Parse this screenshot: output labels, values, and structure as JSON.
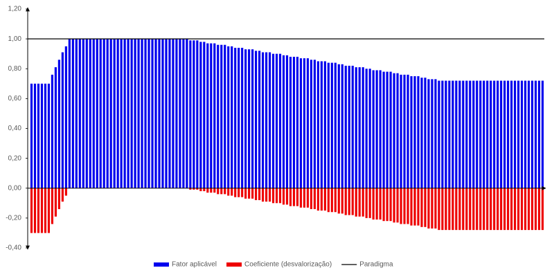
{
  "chart_data": {
    "type": "bar",
    "categories": [
      null,
      null,
      null,
      null,
      null,
      null,
      null,
      null,
      null,
      null,
      null,
      null,
      null,
      null,
      null,
      null,
      null,
      null,
      null,
      null,
      null,
      null,
      null,
      null,
      null,
      null,
      null,
      null,
      null,
      null,
      null,
      null,
      null,
      null,
      null,
      null,
      null,
      null,
      null,
      null,
      null,
      null,
      null,
      null,
      null,
      null,
      null,
      null,
      null,
      null,
      null,
      null,
      null,
      null,
      null,
      null,
      null,
      null,
      null,
      null,
      null,
      null,
      null,
      null,
      null,
      null,
      null,
      null,
      null,
      null,
      null,
      null,
      null,
      null,
      null,
      null,
      null,
      null,
      null,
      null,
      null,
      null,
      null,
      null,
      null,
      null,
      null,
      null,
      null,
      null,
      null,
      null,
      null,
      null,
      null,
      null,
      null,
      null,
      null,
      null,
      null,
      null,
      null,
      null,
      null,
      null,
      null,
      null,
      null,
      null,
      null,
      null,
      null,
      null,
      null,
      null,
      null,
      null,
      null,
      null,
      null,
      null,
      null,
      null,
      null,
      null,
      null,
      null,
      null,
      null,
      null,
      null,
      null,
      null,
      null,
      null,
      null,
      null,
      null,
      null,
      null,
      null,
      null,
      null,
      null,
      null,
      null,
      null,
      null
    ],
    "series": [
      {
        "name": "Fator aplicável",
        "color": "#0000ee",
        "values": [
          0.7,
          0.7,
          0.7,
          0.7,
          0.7,
          0.7,
          0.76,
          0.81,
          0.86,
          0.91,
          0.95,
          1,
          1,
          1,
          1,
          1,
          1,
          1,
          1,
          1,
          1,
          1,
          1,
          1,
          1,
          1,
          1,
          1,
          1,
          1,
          1,
          1,
          1,
          1,
          1,
          1,
          1,
          1,
          1,
          1,
          1,
          1,
          1,
          1,
          1,
          1,
          0.99,
          0.99,
          0.99,
          0.98,
          0.98,
          0.97,
          0.97,
          0.97,
          0.96,
          0.96,
          0.96,
          0.95,
          0.95,
          0.94,
          0.94,
          0.94,
          0.93,
          0.93,
          0.93,
          0.92,
          0.92,
          0.91,
          0.91,
          0.91,
          0.9,
          0.9,
          0.9,
          0.89,
          0.89,
          0.88,
          0.88,
          0.88,
          0.87,
          0.87,
          0.87,
          0.86,
          0.86,
          0.85,
          0.85,
          0.85,
          0.84,
          0.84,
          0.84,
          0.83,
          0.83,
          0.82,
          0.82,
          0.82,
          0.81,
          0.81,
          0.81,
          0.8,
          0.8,
          0.79,
          0.79,
          0.79,
          0.78,
          0.78,
          0.78,
          0.77,
          0.77,
          0.76,
          0.76,
          0.76,
          0.75,
          0.75,
          0.75,
          0.74,
          0.74,
          0.73,
          0.73,
          0.73,
          0.72,
          0.72,
          0.72,
          0.72,
          0.72,
          0.72,
          0.72,
          0.72,
          0.72,
          0.72,
          0.72,
          0.72,
          0.72,
          0.72,
          0.72,
          0.72,
          0.72,
          0.72,
          0.72,
          0.72,
          0.72,
          0.72,
          0.72,
          0.72,
          0.72,
          0.72,
          0.72,
          0.72,
          0.72,
          0.72,
          0.72
        ]
      },
      {
        "name": "Coeficiente (desvalorização)",
        "color": "#ee0000",
        "values": [
          -0.3,
          -0.3,
          -0.3,
          -0.3,
          -0.3,
          -0.3,
          -0.24,
          -0.19,
          -0.14,
          -0.09,
          -0.05,
          0,
          0,
          0,
          0,
          0,
          0,
          0,
          0,
          0,
          0,
          0,
          0,
          0,
          0,
          0,
          0,
          0,
          0,
          0,
          0,
          0,
          0,
          0,
          0,
          0,
          0,
          0,
          0,
          0,
          0,
          0,
          0,
          0,
          0,
          0,
          -0.01,
          -0.01,
          -0.01,
          -0.02,
          -0.02,
          -0.03,
          -0.03,
          -0.03,
          -0.04,
          -0.04,
          -0.04,
          -0.05,
          -0.05,
          -0.06,
          -0.06,
          -0.06,
          -0.07,
          -0.07,
          -0.07,
          -0.08,
          -0.08,
          -0.09,
          -0.09,
          -0.09,
          -0.1,
          -0.1,
          -0.1,
          -0.11,
          -0.11,
          -0.12,
          -0.12,
          -0.12,
          -0.13,
          -0.13,
          -0.13,
          -0.14,
          -0.14,
          -0.15,
          -0.15,
          -0.15,
          -0.16,
          -0.16,
          -0.16,
          -0.17,
          -0.17,
          -0.18,
          -0.18,
          -0.18,
          -0.19,
          -0.19,
          -0.19,
          -0.2,
          -0.2,
          -0.21,
          -0.21,
          -0.21,
          -0.22,
          -0.22,
          -0.22,
          -0.23,
          -0.23,
          -0.24,
          -0.24,
          -0.24,
          -0.25,
          -0.25,
          -0.25,
          -0.26,
          -0.26,
          -0.27,
          -0.27,
          -0.27,
          -0.28,
          -0.28,
          -0.28,
          -0.28,
          -0.28,
          -0.28,
          -0.28,
          -0.28,
          -0.28,
          -0.28,
          -0.28,
          -0.28,
          -0.28,
          -0.28,
          -0.28,
          -0.28,
          -0.28,
          -0.28,
          -0.28,
          -0.28,
          -0.28,
          -0.28,
          -0.28,
          -0.28,
          -0.28,
          -0.28,
          -0.28,
          -0.28,
          -0.28,
          -0.28,
          -0.28
        ]
      }
    ],
    "paradigm": {
      "name": "Paradigma",
      "value": 1,
      "color": "#000000"
    },
    "ylim": [
      -0.4,
      1.2
    ],
    "yticks": [
      {
        "value": -0.4,
        "label": "-0,40"
      },
      {
        "value": -0.2,
        "label": "-0,20"
      },
      {
        "value": 0,
        "label": "0,00"
      },
      {
        "value": 0.2,
        "label": "0,20"
      },
      {
        "value": 0.4,
        "label": "0,40"
      },
      {
        "value": 0.6,
        "label": "0,60"
      },
      {
        "value": 0.8,
        "label": "0,80"
      },
      {
        "value": 1,
        "label": "1,00"
      },
      {
        "value": 1.2,
        "label": "1,20"
      }
    ],
    "legend": "bottom"
  }
}
